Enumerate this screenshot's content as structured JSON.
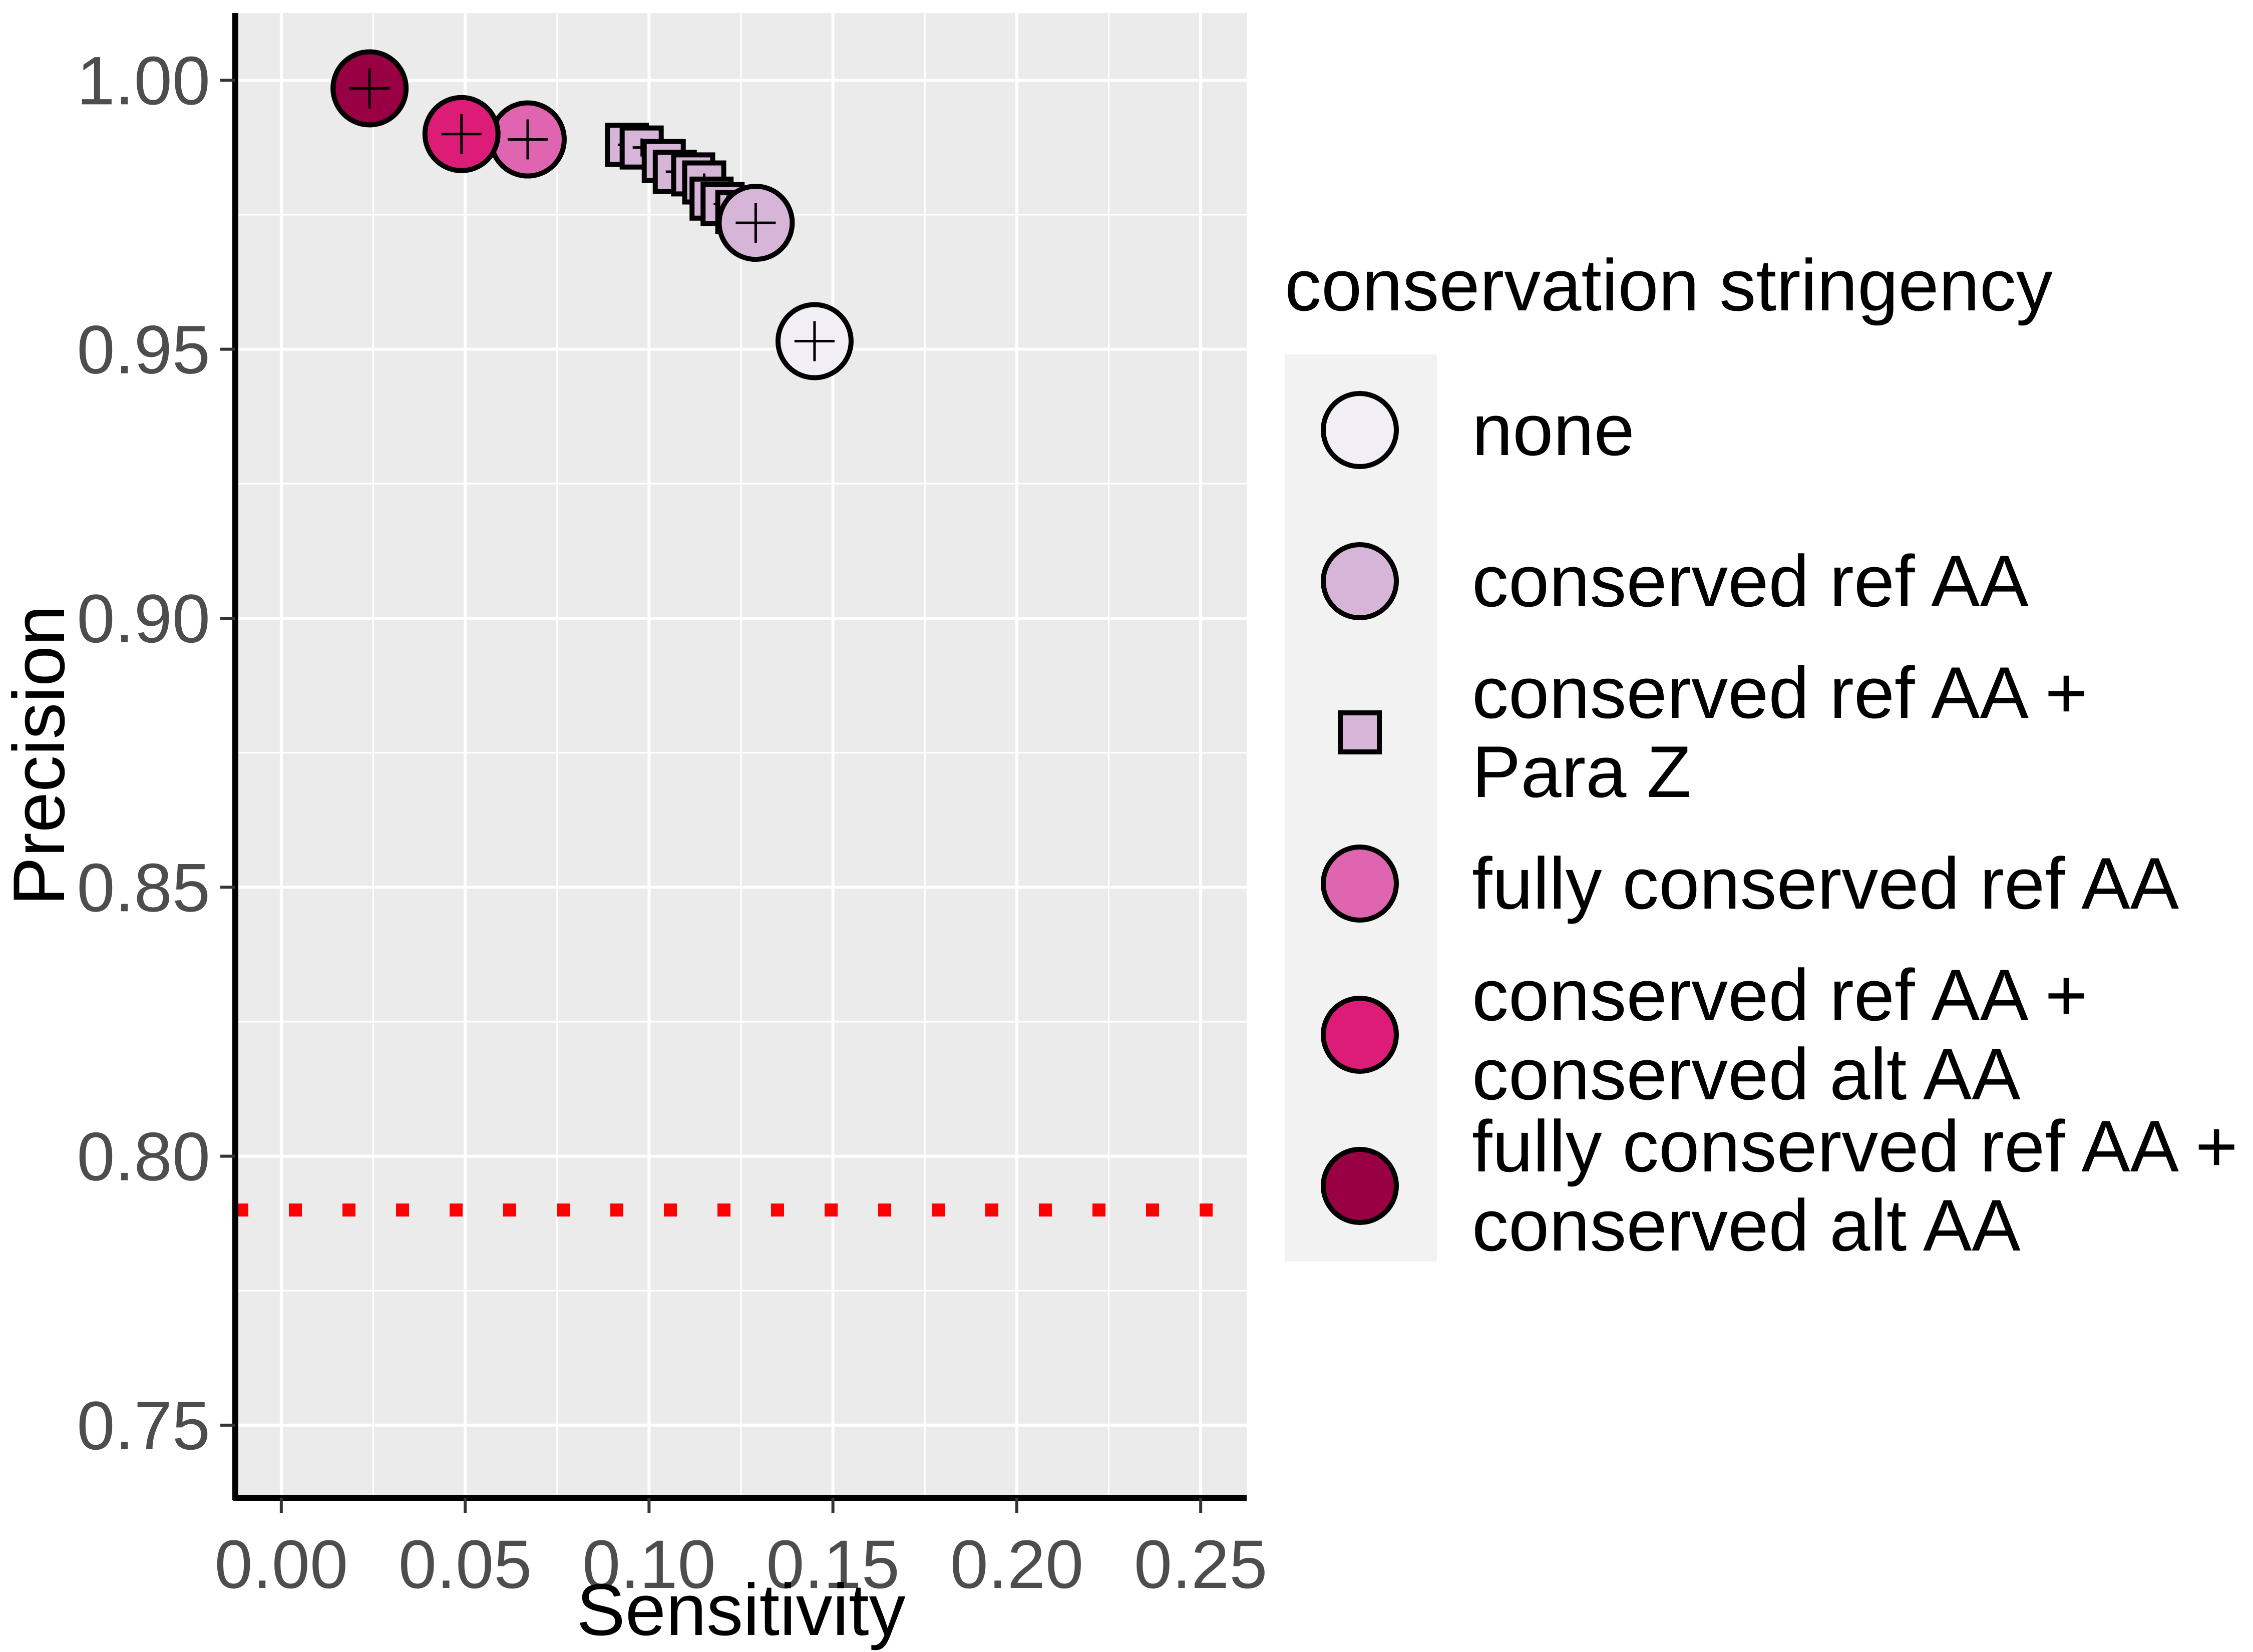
{
  "chart_data": {
    "type": "scatter",
    "title": "",
    "xlabel": "Sensitivity",
    "ylabel": "Precision",
    "xlim": [
      -0.0125,
      0.2625
    ],
    "ylim": [
      0.7365,
      1.0125
    ],
    "xticks": [
      0.0,
      0.05,
      0.1,
      0.15,
      0.2,
      0.25
    ],
    "xtick_labels": [
      "0.00",
      "0.05",
      "0.10",
      "0.15",
      "0.20",
      "0.25"
    ],
    "yticks": [
      0.75,
      0.8,
      0.85,
      0.9,
      0.95,
      1.0
    ],
    "ytick_labels": [
      "0.75",
      "0.80",
      "0.85",
      "0.90",
      "0.95",
      "1.00"
    ],
    "grid": true,
    "background": "#ebebeb",
    "gridline_color": "#ffffff",
    "reference_line": {
      "orientation": "horizontal",
      "y": 0.79,
      "style": "dotted",
      "color": "#ff0000"
    },
    "legend": {
      "title": "conservation stringency",
      "position": "right",
      "background": "#f2f2f2"
    },
    "series": [
      {
        "name": [
          "none"
        ],
        "marker": "circle",
        "color": "#f1eef6",
        "points": [
          {
            "x": 0.145,
            "y": 0.9515
          }
        ]
      },
      {
        "name": [
          "conserved ref AA"
        ],
        "marker": "circle",
        "color": "#d7b5d8",
        "points": [
          {
            "x": 0.129,
            "y": 0.9735
          }
        ]
      },
      {
        "name": [
          "conserved ref AA +",
          "Para Z"
        ],
        "marker": "square",
        "color": "#d7b5d8",
        "points": [
          {
            "x": 0.094,
            "y": 0.988
          },
          {
            "x": 0.098,
            "y": 0.9875
          },
          {
            "x": 0.104,
            "y": 0.985
          },
          {
            "x": 0.107,
            "y": 0.983
          },
          {
            "x": 0.112,
            "y": 0.9825
          },
          {
            "x": 0.115,
            "y": 0.981
          },
          {
            "x": 0.117,
            "y": 0.978
          },
          {
            "x": 0.12,
            "y": 0.977
          },
          {
            "x": 0.124,
            "y": 0.9755
          },
          {
            "x": 0.127,
            "y": 0.9745
          },
          {
            "x": 0.13,
            "y": 0.9735
          }
        ]
      },
      {
        "name": [
          "fully conserved ref AA"
        ],
        "marker": "circle",
        "color": "#df65b0",
        "points": [
          {
            "x": 0.067,
            "y": 0.989
          }
        ]
      },
      {
        "name": [
          "conserved ref AA +",
          "conserved alt AA"
        ],
        "marker": "circle",
        "color": "#dd1c77",
        "points": [
          {
            "x": 0.049,
            "y": 0.99
          }
        ]
      },
      {
        "name": [
          "fully conserved ref AA +",
          "conserved alt AA"
        ],
        "marker": "circle",
        "color": "#980043",
        "points": [
          {
            "x": 0.024,
            "y": 0.9985
          }
        ]
      }
    ]
  }
}
